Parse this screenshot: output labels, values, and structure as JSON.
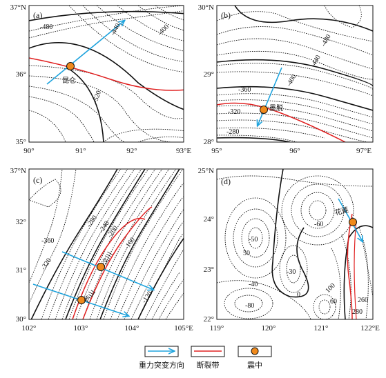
{
  "panels": [
    {
      "id": "a",
      "label": "(a)",
      "x_ticks": [
        "90°",
        "91°",
        "92°",
        "93°E"
      ],
      "y_ticks": [
        "37°N",
        "36°",
        "35°"
      ],
      "contours": [
        "-480",
        "-440",
        "-400",
        "-520"
      ],
      "epicenter_label": "昆仑"
    },
    {
      "id": "b",
      "label": "(b)",
      "x_ticks": [
        "95°",
        "96°",
        "97°E"
      ],
      "y_ticks": [
        "30°N",
        "29°",
        "28°"
      ],
      "contours": [
        "-480",
        "-440",
        "-400",
        "-360",
        "-320",
        "-280"
      ],
      "epicenter_label": "墨脱"
    },
    {
      "id": "c",
      "label": "(c)",
      "x_ticks": [
        "102°",
        "103°",
        "104°",
        "105°E"
      ],
      "y_ticks": [
        "37°N",
        "32°",
        "31°",
        "30°"
      ],
      "contours": [
        "-360",
        "-320",
        "-280",
        "-240",
        "-200",
        "-160",
        "-120"
      ],
      "epicenter_labels": [
        "汶川",
        "芦山"
      ]
    },
    {
      "id": "d",
      "label": "(d)",
      "x_ticks": [
        "119°",
        "120°",
        "121°",
        "122°E"
      ],
      "y_ticks": [
        "25°N",
        "24°",
        "23°",
        "22°"
      ],
      "contours": [
        "-60",
        "-50",
        "50",
        "-40",
        "-30",
        "-80",
        "0",
        "100",
        "60",
        "260",
        "280"
      ],
      "epicenter_label": "花莲"
    }
  ],
  "legend": {
    "arrow_label": "重力突变方向",
    "fault_label": "断裂带",
    "epicenter_label": "震中"
  },
  "colors": {
    "arrow": "#1ea3dd",
    "fault": "#e02020",
    "epicenter": "#f08a1c",
    "contour": "#111111"
  }
}
